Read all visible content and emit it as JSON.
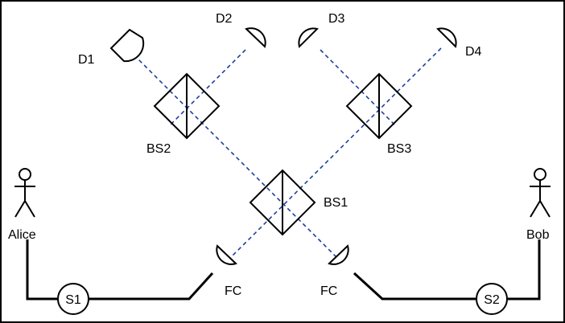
{
  "labels": {
    "d1": "D1",
    "d2": "D2",
    "d3": "D3",
    "d4": "D4",
    "bs1": "BS1",
    "bs2": "BS2",
    "bs3": "BS3",
    "fc_left": "FC",
    "fc_right": "FC",
    "alice": "Alice",
    "bob": "Bob",
    "s1": "S1",
    "s2": "S2"
  },
  "colors": {
    "beam": "#1f3f9f",
    "stroke": "#000000",
    "background": "#ffffff"
  }
}
